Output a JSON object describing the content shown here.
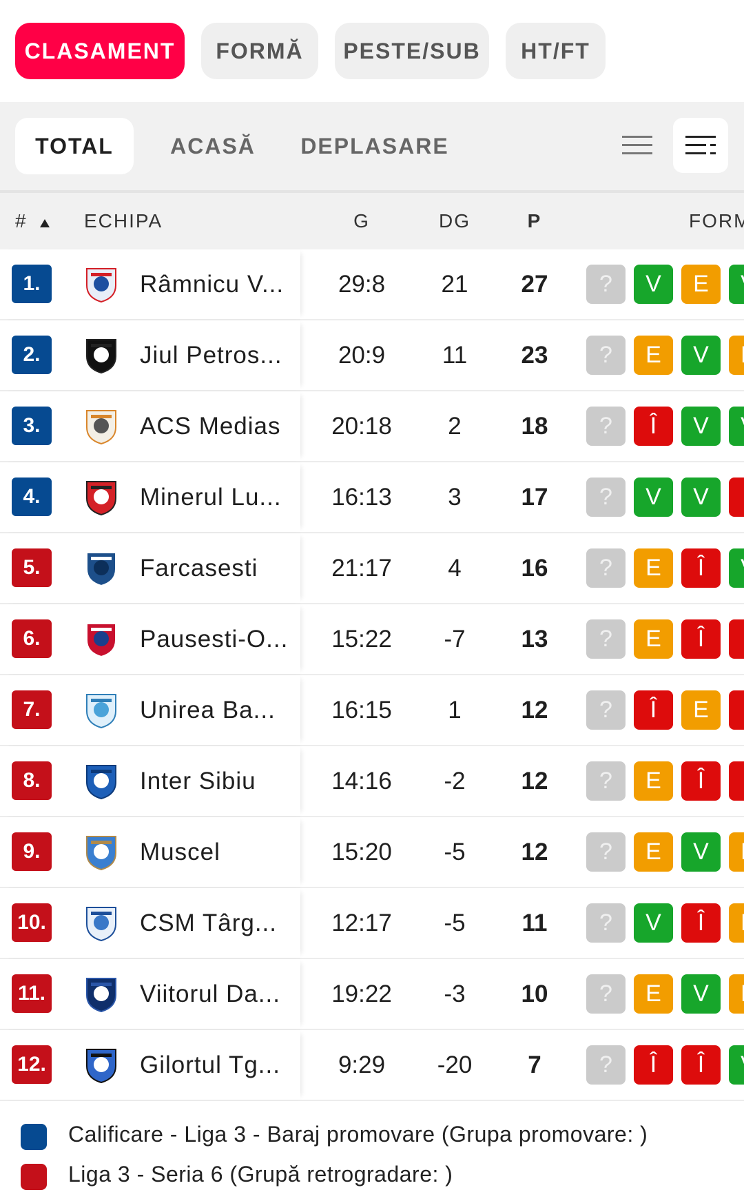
{
  "top_tabs": [
    {
      "label": "CLASAMENT",
      "active": true
    },
    {
      "label": "FORMĂ",
      "active": false
    },
    {
      "label": "PESTE/SUB",
      "active": false
    },
    {
      "label": "HT/FT",
      "active": false
    }
  ],
  "sub_tabs": [
    {
      "label": "TOTAL",
      "active": true
    },
    {
      "label": "ACASĂ",
      "active": false
    },
    {
      "label": "DEPLASARE",
      "active": false
    }
  ],
  "header": {
    "rank": "#",
    "team": "ECHIPA",
    "goals": "G",
    "goal_diff": "DG",
    "points": "P",
    "form": "FORM"
  },
  "colors": {
    "accent": "#ff0046",
    "promotion": "#064a91",
    "relegation": "#c4101a",
    "win": "#17a62b",
    "draw": "#f29d00",
    "loss": "#dd0c0c",
    "unknown": "#cbcbcb"
  },
  "rows": [
    {
      "rank": "1.",
      "zone": "promotion",
      "team": "Râmnicu V...",
      "goals": "29:8",
      "gd": "21",
      "pts": "27",
      "form": [
        "?",
        "V",
        "E",
        "V"
      ]
    },
    {
      "rank": "2.",
      "zone": "promotion",
      "team": "Jiul Petros...",
      "goals": "20:9",
      "gd": "11",
      "pts": "23",
      "form": [
        "?",
        "E",
        "V",
        "E"
      ]
    },
    {
      "rank": "3.",
      "zone": "promotion",
      "team": "ACS Medias",
      "goals": "20:18",
      "gd": "2",
      "pts": "18",
      "form": [
        "?",
        "Î",
        "V",
        "V"
      ]
    },
    {
      "rank": "4.",
      "zone": "promotion",
      "team": "Minerul Lu...",
      "goals": "16:13",
      "gd": "3",
      "pts": "17",
      "form": [
        "?",
        "V",
        "V",
        "Î"
      ]
    },
    {
      "rank": "5.",
      "zone": "relegation",
      "team": "Farcasesti",
      "goals": "21:17",
      "gd": "4",
      "pts": "16",
      "form": [
        "?",
        "E",
        "Î",
        "V"
      ]
    },
    {
      "rank": "6.",
      "zone": "relegation",
      "team": "Pausesti-O...",
      "goals": "15:22",
      "gd": "-7",
      "pts": "13",
      "form": [
        "?",
        "E",
        "Î",
        "Î"
      ]
    },
    {
      "rank": "7.",
      "zone": "relegation",
      "team": "Unirea Ba...",
      "goals": "16:15",
      "gd": "1",
      "pts": "12",
      "form": [
        "?",
        "Î",
        "E",
        "Î"
      ]
    },
    {
      "rank": "8.",
      "zone": "relegation",
      "team": "Inter Sibiu",
      "goals": "14:16",
      "gd": "-2",
      "pts": "12",
      "form": [
        "?",
        "E",
        "Î",
        "Î"
      ]
    },
    {
      "rank": "9.",
      "zone": "relegation",
      "team": "Muscel",
      "goals": "15:20",
      "gd": "-5",
      "pts": "12",
      "form": [
        "?",
        "E",
        "V",
        "E"
      ]
    },
    {
      "rank": "10.",
      "zone": "relegation",
      "team": "CSM Târg...",
      "goals": "12:17",
      "gd": "-5",
      "pts": "11",
      "form": [
        "?",
        "V",
        "Î",
        "E"
      ]
    },
    {
      "rank": "11.",
      "zone": "relegation",
      "team": "Viitorul Da...",
      "goals": "19:22",
      "gd": "-3",
      "pts": "10",
      "form": [
        "?",
        "E",
        "V",
        "E"
      ]
    },
    {
      "rank": "12.",
      "zone": "relegation",
      "team": "Gilortul Tg...",
      "goals": "9:29",
      "gd": "-20",
      "pts": "7",
      "form": [
        "?",
        "Î",
        "Î",
        "V"
      ]
    }
  ],
  "legend": [
    {
      "zone": "promotion",
      "text": "Calificare - Liga 3 - Baraj promovare (Grupa promovare: )"
    },
    {
      "zone": "relegation",
      "text": "Liga 3 - Seria 6 (Grupă retrogradare: )"
    }
  ]
}
